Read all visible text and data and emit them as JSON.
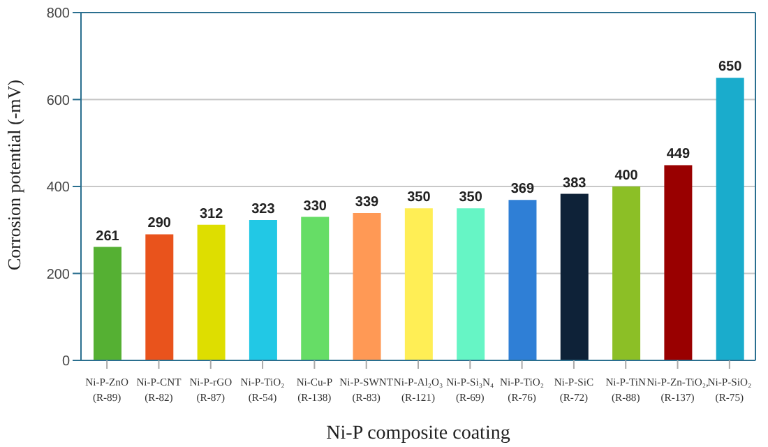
{
  "chart_data": {
    "type": "bar",
    "xlabel": "Ni-P composite coating",
    "ylabel": "Corrosion potential (-mV)",
    "categories": [
      "Ni-P-ZnO\n(R-89)",
      "Ni-P-CNT\n(R-82)",
      "Ni-P-rGO\n(R-87)",
      "Ni-P-TiO₂\n(R-54)",
      "Ni-Cu-P\n(R-138)",
      "Ni-P-SWNT\n(R-83)",
      "Ni-P-Al₂O₃\n(R-121)",
      "Ni-P-Si₃N₄\n(R-69)",
      "Ni-P-TiO₂\n(R-76)",
      "Ni-P-SiC\n(R-72)",
      "Ni-P-TiN\n(R-88)",
      "Ni-P-Zn-TiO₂,\n(R-137)",
      "Ni-P-SiO₂\n(R-75)"
    ],
    "values": [
      261,
      290,
      312,
      323,
      330,
      339,
      350,
      350,
      369,
      383,
      400,
      449,
      650
    ],
    "colors": [
      "#55b033",
      "#e9531c",
      "#dede00",
      "#22c8e5",
      "#66dd66",
      "#ff9955",
      "#ffee55",
      "#66f5c5",
      "#2f7fd6",
      "#0e2238",
      "#8cbf26",
      "#990000",
      "#1aaccc"
    ],
    "ylim": [
      0,
      800
    ],
    "yticks": [
      0,
      200,
      400,
      600,
      800
    ],
    "grid": "y",
    "data_labels": true
  }
}
